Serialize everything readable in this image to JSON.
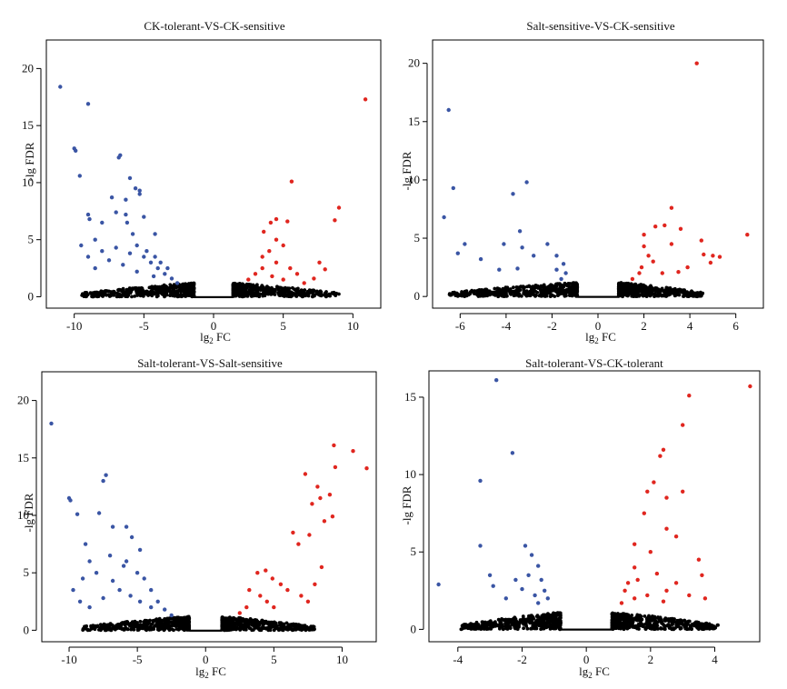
{
  "panels": [
    {
      "title": "CK-tolerant-VS-CK-sensitive",
      "xlabel": "lg₂ FC",
      "ylabel": "-lg FDR",
      "chart_data": {
        "type": "scatter",
        "title": "CK-tolerant-VS-CK-sensitive",
        "xlabel": "lg₂ FC",
        "ylabel": "-lg FDR",
        "xlim": [
          -12,
          12
        ],
        "ylim": [
          -1,
          22.5
        ],
        "xticks": [
          -10,
          -5,
          0,
          5,
          10
        ],
        "yticks": [
          0,
          5,
          10,
          15,
          20
        ],
        "grid": false,
        "colors": {
          "down": "#3a55a4",
          "up": "#e0261f",
          "ns": "#000000"
        },
        "down_points": [
          [
            -11,
            18.4
          ],
          [
            -9,
            16.9
          ],
          [
            -10,
            13
          ],
          [
            -9.9,
            12.8
          ],
          [
            -6.7,
            12.4
          ],
          [
            -6.8,
            12.2
          ],
          [
            -9.6,
            10.6
          ],
          [
            -6,
            10.4
          ],
          [
            -5.6,
            9.5
          ],
          [
            -5.3,
            9.3
          ],
          [
            -5.3,
            9
          ],
          [
            -7.3,
            8.7
          ],
          [
            -6.3,
            8.5
          ],
          [
            -7,
            7.4
          ],
          [
            -6.3,
            7.2
          ],
          [
            -9,
            7.2
          ],
          [
            -5,
            7
          ],
          [
            -8.9,
            6.8
          ],
          [
            -8,
            6.5
          ],
          [
            -6.2,
            6.5
          ],
          [
            -4.2,
            5.5
          ],
          [
            -8.5,
            5
          ],
          [
            -8,
            4
          ],
          [
            -7,
            4.3
          ],
          [
            -6,
            3.8
          ],
          [
            -5,
            3.5
          ],
          [
            -4.5,
            3
          ],
          [
            -4,
            2.5
          ],
          [
            -3.5,
            2
          ],
          [
            -3,
            1.6
          ],
          [
            -2.6,
            1.2
          ],
          [
            -9.5,
            4.5
          ],
          [
            -9,
            3.5
          ],
          [
            -8.5,
            2.5
          ],
          [
            -5.8,
            5.5
          ],
          [
            -5.5,
            4.5
          ],
          [
            -4.8,
            4
          ],
          [
            -4.2,
            3.5
          ],
          [
            -3.8,
            3
          ],
          [
            -3.3,
            2.5
          ],
          [
            -7.5,
            3.2
          ],
          [
            -6.5,
            2.8
          ],
          [
            -5.5,
            2.2
          ],
          [
            -4.3,
            1.8
          ]
        ],
        "up_points": [
          [
            10.9,
            17.3
          ],
          [
            5.6,
            10.1
          ],
          [
            9,
            7.8
          ],
          [
            8.7,
            6.7
          ],
          [
            4.5,
            6.8
          ],
          [
            4.1,
            6.5
          ],
          [
            5.3,
            6.6
          ],
          [
            3.6,
            5.7
          ],
          [
            4.5,
            5
          ],
          [
            5,
            4.5
          ],
          [
            4,
            4
          ],
          [
            3.5,
            3.5
          ],
          [
            4.5,
            3
          ],
          [
            5.5,
            2.5
          ],
          [
            6,
            2
          ],
          [
            2.5,
            1.5
          ],
          [
            3,
            2
          ],
          [
            3.5,
            2.5
          ],
          [
            4.2,
            1.8
          ],
          [
            5,
            1.5
          ],
          [
            7.6,
            3
          ],
          [
            8,
            2.4
          ],
          [
            7.2,
            1.6
          ],
          [
            6.5,
            1.2
          ]
        ],
        "ns_range": {
          "left": [
            -9.5,
            -1.4
          ],
          "right": [
            1.4,
            9
          ],
          "ymax": 1.2
        }
      }
    },
    {
      "title": "Salt-sensitive-VS-CK-sensitive",
      "xlabel": "lg₂ FC",
      "ylabel": "-lg FDR",
      "chart_data": {
        "type": "scatter",
        "title": "Salt-sensitive-VS-CK-sensitive",
        "xlabel": "lg₂ FC",
        "ylabel": "-lg FDR",
        "xlim": [
          -7.2,
          7.2
        ],
        "ylim": [
          -1,
          22
        ],
        "xticks": [
          -6,
          -4,
          -2,
          0,
          2,
          4,
          6
        ],
        "yticks": [
          0,
          5,
          10,
          15,
          20
        ],
        "grid": false,
        "colors": {
          "down": "#3a55a4",
          "up": "#e0261f",
          "ns": "#000000"
        },
        "down_points": [
          [
            -6.5,
            16
          ],
          [
            -6.3,
            9.3
          ],
          [
            -6.7,
            6.8
          ],
          [
            -3.1,
            9.8
          ],
          [
            -3.7,
            8.8
          ],
          [
            -3.4,
            5.6
          ],
          [
            -4.1,
            4.5
          ],
          [
            -3.3,
            4.2
          ],
          [
            -2.2,
            4.5
          ],
          [
            -6.1,
            3.7
          ],
          [
            -5.1,
            3.2
          ],
          [
            -5.8,
            4.5
          ],
          [
            -2.8,
            3.5
          ],
          [
            -1.8,
            3.5
          ],
          [
            -1.5,
            2.8
          ],
          [
            -1.8,
            2.3
          ],
          [
            -1.4,
            2
          ],
          [
            -3.5,
            2.4
          ],
          [
            -4.3,
            2.3
          ],
          [
            -1.6,
            1.5
          ]
        ],
        "up_points": [
          [
            4.3,
            20
          ],
          [
            6.5,
            5.3
          ],
          [
            3.2,
            7.6
          ],
          [
            2,
            5.3
          ],
          [
            2.5,
            6
          ],
          [
            2.9,
            6.1
          ],
          [
            3.6,
            5.8
          ],
          [
            3.2,
            4.5
          ],
          [
            2,
            4.3
          ],
          [
            2.2,
            3.5
          ],
          [
            4.5,
            4.8
          ],
          [
            4.6,
            3.6
          ],
          [
            5,
            3.5
          ],
          [
            5.3,
            3.4
          ],
          [
            4.9,
            2.9
          ],
          [
            2.4,
            3
          ],
          [
            1.9,
            2.5
          ],
          [
            1.8,
            2
          ],
          [
            1.5,
            1.5
          ],
          [
            3.9,
            2.5
          ],
          [
            2.8,
            2
          ],
          [
            3.5,
            2.1
          ]
        ],
        "ns_range": {
          "left": [
            -6.5,
            -0.9
          ],
          "right": [
            0.9,
            4.6
          ],
          "ymax": 1.2
        }
      }
    },
    {
      "title": "Salt-tolerant-VS-Salt-sensitive",
      "xlabel": "lg₂ FC",
      "ylabel": "-lg FDR",
      "chart_data": {
        "type": "scatter",
        "title": "Salt-tolerant-VS-Salt-sensitive",
        "xlabel": "lg₂ FC",
        "ylabel": "-lg FDR",
        "xlim": [
          -12,
          12.5
        ],
        "ylim": [
          -1,
          22.5
        ],
        "xticks": [
          -10,
          -5,
          0,
          5,
          10
        ],
        "yticks": [
          0,
          5,
          10,
          15,
          20
        ],
        "grid": false,
        "colors": {
          "down": "#3a55a4",
          "up": "#e0261f",
          "ns": "#000000"
        },
        "down_points": [
          [
            -11.3,
            18
          ],
          [
            -7.3,
            13.5
          ],
          [
            -7.5,
            13
          ],
          [
            -10,
            11.5
          ],
          [
            -9.9,
            11.3
          ],
          [
            -7.8,
            10.2
          ],
          [
            -9.4,
            10.1
          ],
          [
            -6.8,
            9
          ],
          [
            -5.8,
            9
          ],
          [
            -5.4,
            8.1
          ],
          [
            -4.8,
            7
          ],
          [
            -5.8,
            6
          ],
          [
            -8.8,
            7.5
          ],
          [
            -8.5,
            6
          ],
          [
            -7,
            6.5
          ],
          [
            -6,
            5.6
          ],
          [
            -8,
            5
          ],
          [
            -9,
            4.5
          ],
          [
            -5,
            5
          ],
          [
            -4.5,
            4.5
          ],
          [
            -4,
            3.5
          ],
          [
            -3.5,
            2.5
          ],
          [
            -3,
            1.8
          ],
          [
            -2.5,
            1.3
          ],
          [
            -9.7,
            3.5
          ],
          [
            -9.2,
            2.5
          ],
          [
            -8.5,
            2
          ],
          [
            -7.5,
            2.8
          ],
          [
            -6.3,
            3.5
          ],
          [
            -5.5,
            3
          ],
          [
            -4.8,
            2.5
          ],
          [
            -4,
            2
          ],
          [
            -6.8,
            4.3
          ]
        ],
        "up_points": [
          [
            9.4,
            16.1
          ],
          [
            10.8,
            15.6
          ],
          [
            11.8,
            14.1
          ],
          [
            7.3,
            13.6
          ],
          [
            9.5,
            14.2
          ],
          [
            8.2,
            12.5
          ],
          [
            7.8,
            11
          ],
          [
            9.1,
            11.8
          ],
          [
            8.4,
            11.5
          ],
          [
            9.3,
            9.9
          ],
          [
            8.7,
            9.5
          ],
          [
            6.4,
            8.5
          ],
          [
            7.6,
            8.3
          ],
          [
            6.8,
            7.5
          ],
          [
            3.8,
            5
          ],
          [
            4.4,
            5.2
          ],
          [
            4.9,
            4.5
          ],
          [
            3.2,
            3.5
          ],
          [
            4,
            3
          ],
          [
            5.5,
            4
          ],
          [
            6,
            3.5
          ],
          [
            7,
            3
          ],
          [
            7.5,
            2.5
          ],
          [
            8,
            4
          ],
          [
            8.5,
            5.5
          ],
          [
            3,
            2
          ],
          [
            2.5,
            1.5
          ],
          [
            5,
            2
          ],
          [
            4.5,
            2.5
          ]
        ],
        "ns_range": {
          "left": [
            -9,
            -1.2
          ],
          "right": [
            1.2,
            8
          ],
          "ymax": 1.2
        }
      }
    },
    {
      "title": "Salt-tolerant-VS-CK-tolerant",
      "xlabel": "lg₂ FC",
      "ylabel": "-lg FDR",
      "chart_data": {
        "type": "scatter",
        "title": "Salt-tolerant-VS-CK-tolerant",
        "xlabel": "lg₂ FC",
        "ylabel": "-lg FDR",
        "xlim": [
          -4.9,
          5.4
        ],
        "ylim": [
          -0.8,
          16.7
        ],
        "xticks": [
          -4,
          -2,
          0,
          2,
          4
        ],
        "yticks": [
          0,
          5,
          10,
          15
        ],
        "grid": false,
        "colors": {
          "down": "#3a55a4",
          "up": "#e0261f",
          "ns": "#000000"
        },
        "down_points": [
          [
            -2.8,
            16.1
          ],
          [
            -2.3,
            11.4
          ],
          [
            -3.3,
            9.6
          ],
          [
            -3.3,
            5.4
          ],
          [
            -1.9,
            5.4
          ],
          [
            -1.7,
            4.8
          ],
          [
            -1.5,
            4.1
          ],
          [
            -4.6,
            2.9
          ],
          [
            -2.9,
            2.8
          ],
          [
            -2.2,
            3.2
          ],
          [
            -1.8,
            3.5
          ],
          [
            -1.4,
            3.2
          ],
          [
            -1.3,
            2.5
          ],
          [
            -1.6,
            2.2
          ],
          [
            -1.2,
            2
          ],
          [
            -2.5,
            2
          ],
          [
            -1.5,
            1.7
          ],
          [
            -3,
            3.5
          ],
          [
            -2,
            2.6
          ]
        ],
        "up_points": [
          [
            5.1,
            15.7
          ],
          [
            3.2,
            15.1
          ],
          [
            3,
            13.2
          ],
          [
            2.4,
            11.6
          ],
          [
            2.3,
            11.2
          ],
          [
            2.1,
            9.5
          ],
          [
            1.9,
            8.9
          ],
          [
            3,
            8.9
          ],
          [
            2.5,
            8.5
          ],
          [
            1.8,
            7.5
          ],
          [
            2.5,
            6.5
          ],
          [
            2.8,
            6
          ],
          [
            1.5,
            5.5
          ],
          [
            2,
            5
          ],
          [
            3.5,
            4.5
          ],
          [
            1.5,
            4
          ],
          [
            2.2,
            3.6
          ],
          [
            3.6,
            3.5
          ],
          [
            1.3,
            3
          ],
          [
            1.6,
            3.2
          ],
          [
            2.8,
            3
          ],
          [
            1.2,
            2.5
          ],
          [
            1.5,
            2
          ],
          [
            1.9,
            2.2
          ],
          [
            2.5,
            2.5
          ],
          [
            3.2,
            2.2
          ],
          [
            1.1,
            1.7
          ],
          [
            3.7,
            2
          ],
          [
            2.4,
            1.8
          ]
        ],
        "ns_range": {
          "left": [
            -3.9,
            -0.8
          ],
          "right": [
            0.8,
            4.1
          ],
          "ymax": 1.1
        }
      }
    }
  ]
}
